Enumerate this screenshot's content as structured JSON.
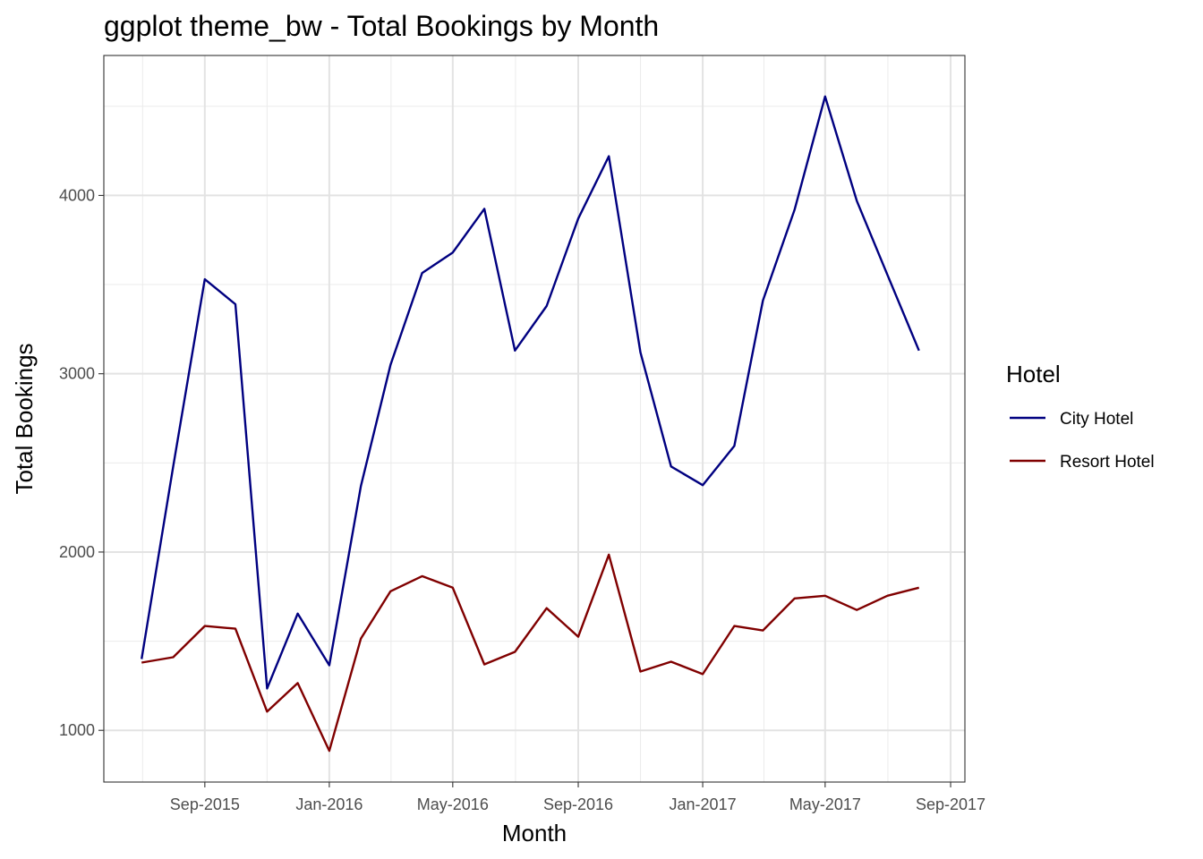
{
  "chart_data": {
    "type": "line",
    "title": "ggplot theme_bw - Total Bookings by Month",
    "xlabel": "Month",
    "ylabel": "Total Bookings",
    "x": [
      "2015-07",
      "2015-08",
      "2015-09",
      "2015-10",
      "2015-11",
      "2015-12",
      "2016-01",
      "2016-02",
      "2016-03",
      "2016-04",
      "2016-05",
      "2016-06",
      "2016-07",
      "2016-08",
      "2016-09",
      "2016-10",
      "2016-11",
      "2016-12",
      "2017-01",
      "2017-02",
      "2017-03",
      "2017-04",
      "2017-05",
      "2017-06",
      "2017-07",
      "2017-08"
    ],
    "x_tick_labels": [
      "Sep-2015",
      "Jan-2016",
      "May-2016",
      "Sep-2016",
      "Jan-2017",
      "May-2017",
      "Sep-2017"
    ],
    "x_ticks": [
      "2015-09",
      "2016-01",
      "2016-05",
      "2016-09",
      "2017-01",
      "2017-05",
      "2017-09"
    ],
    "xlim": [
      "2015-05-25",
      "2017-09-15"
    ],
    "y_ticks": [
      1000,
      2000,
      3000,
      4000
    ],
    "ylim": [
      710,
      4785
    ],
    "grid": true,
    "legend": {
      "title": "Hotel",
      "position": "right"
    },
    "series": [
      {
        "name": "City Hotel",
        "color": "#000080",
        "values": [
          1400,
          2480,
          3530,
          3390,
          1235,
          1655,
          1365,
          2370,
          3050,
          3565,
          3680,
          3925,
          3130,
          3380,
          3870,
          4220,
          3120,
          2480,
          2375,
          2595,
          3410,
          3920,
          4555,
          3970,
          3555,
          3130
        ]
      },
      {
        "name": "Resort Hotel",
        "color": "#800000",
        "values": [
          1380,
          1410,
          1585,
          1570,
          1105,
          1265,
          885,
          1515,
          1780,
          1865,
          1800,
          1370,
          1440,
          1685,
          1525,
          1985,
          1330,
          1385,
          1315,
          1585,
          1560,
          1740,
          1755,
          1675,
          1755,
          1800
        ]
      }
    ]
  }
}
